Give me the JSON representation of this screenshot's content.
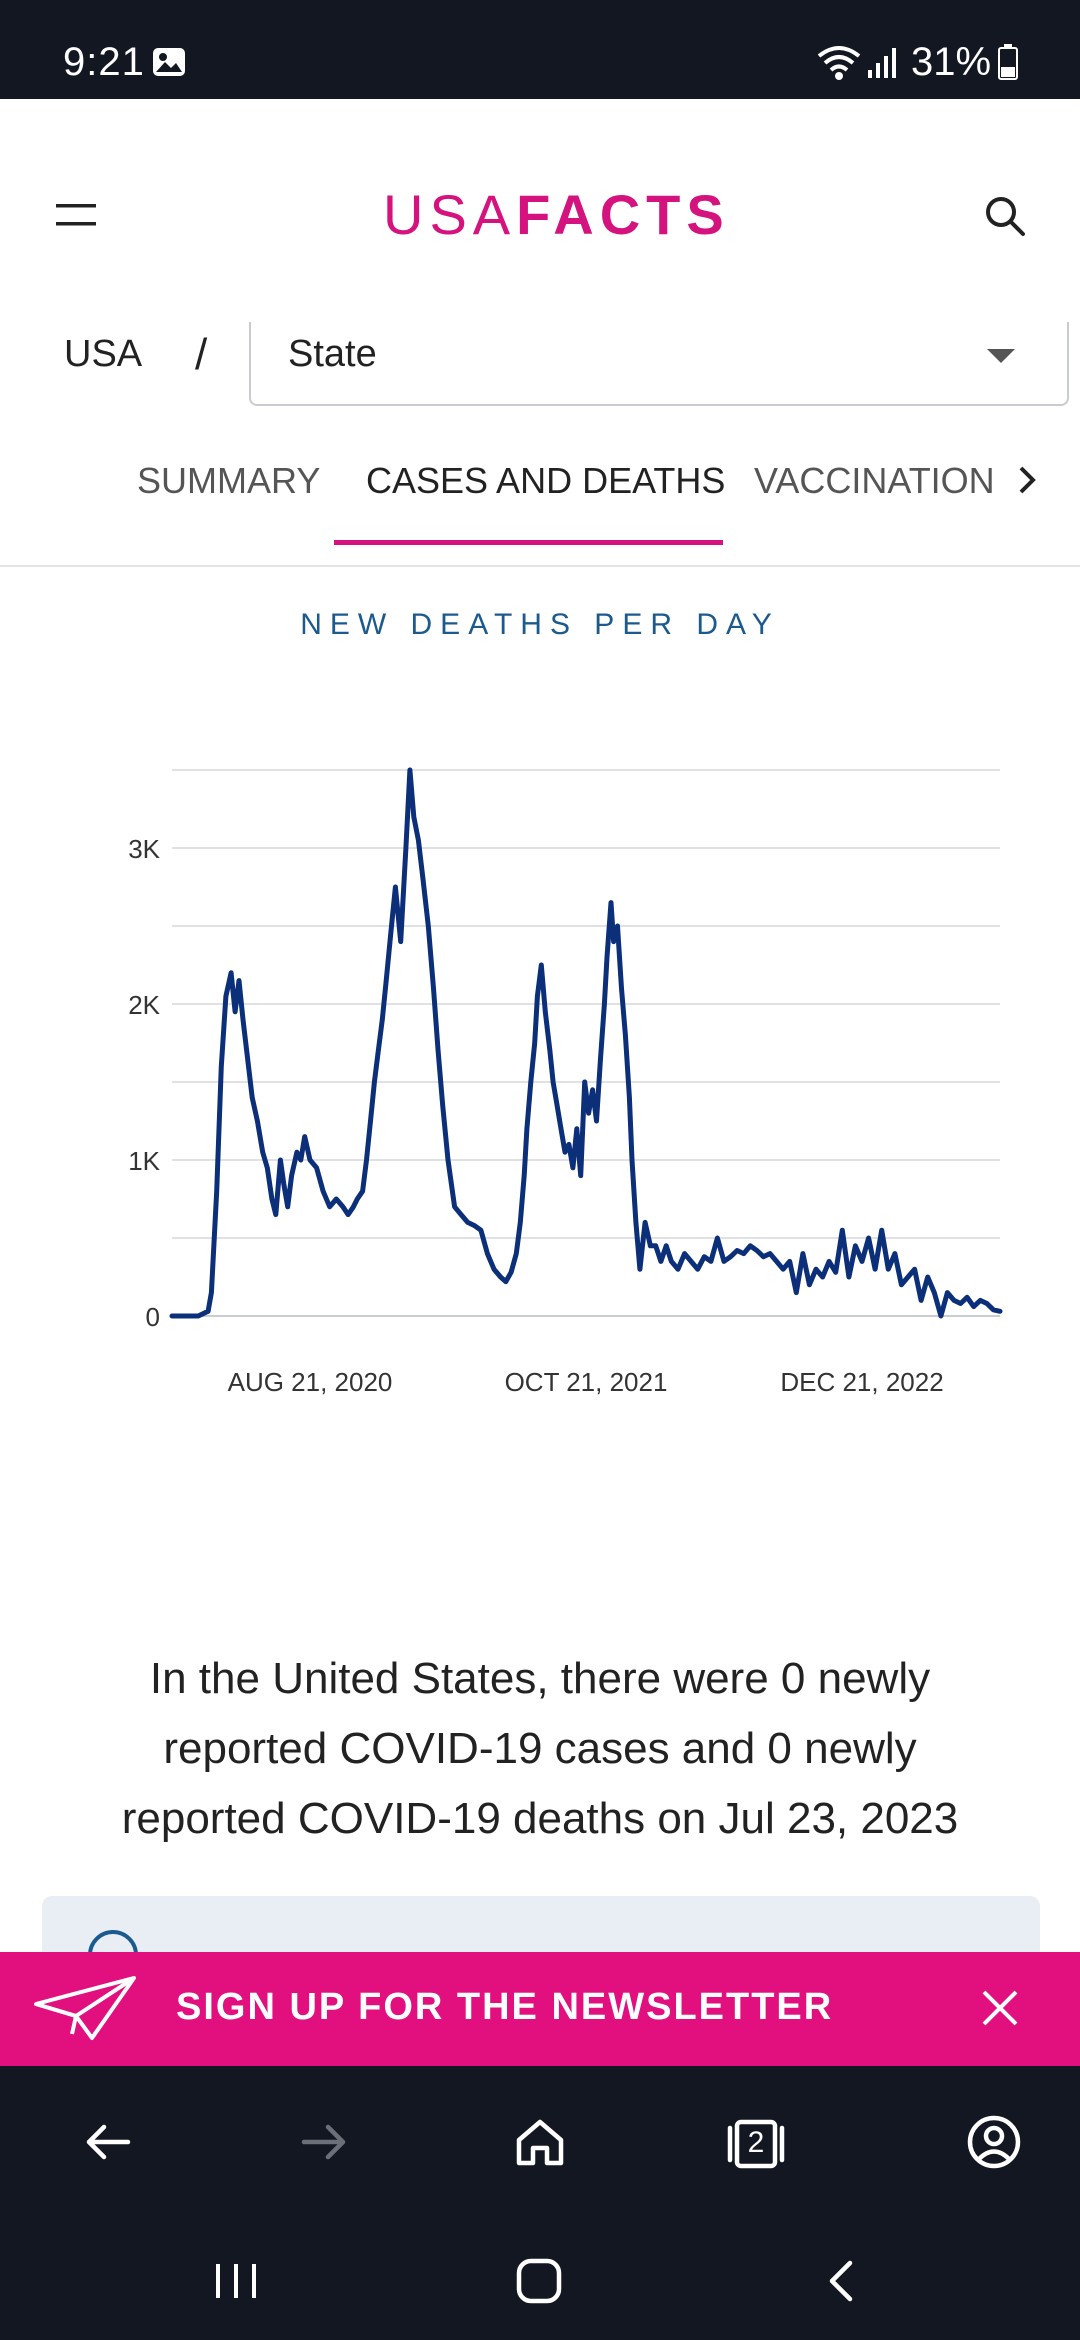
{
  "status_bar": {
    "time": "9:21",
    "battery": "31%"
  },
  "header": {
    "logo_light": "USA",
    "logo_bold": "FACTS"
  },
  "breadcrumb": {
    "country": "USA",
    "separator": "/",
    "state_select_value": "State"
  },
  "tabs": [
    {
      "label": "SUMMARY",
      "active": false
    },
    {
      "label": "CASES AND DEATHS",
      "active": true
    },
    {
      "label": "VACCINATION",
      "active": false
    }
  ],
  "chart_title": "NEW DEATHS PER DAY",
  "chart_data": {
    "type": "line",
    "title": "NEW DEATHS PER DAY",
    "xlabel": "",
    "ylabel": "",
    "ylim": [
      0,
      3500
    ],
    "yticks": [
      0,
      500,
      1000,
      1500,
      2000,
      2500,
      3000,
      3500
    ],
    "ytick_labels": [
      "0",
      "",
      "1K",
      "",
      "2K",
      "",
      "3K",
      ""
    ],
    "xlim": [
      0,
      1260
    ],
    "xticks": [
      {
        "x": 210,
        "label": "AUG 21, 2020"
      },
      {
        "x": 630,
        "label": "OCT 21, 2021"
      },
      {
        "x": 1050,
        "label": "DEC 21, 2022"
      }
    ],
    "series": [
      {
        "name": "New deaths",
        "color": "#0c2f7a",
        "x": [
          0,
          40,
          55,
          60,
          68,
          75,
          82,
          90,
          96,
          102,
          108,
          115,
          122,
          130,
          138,
          145,
          152,
          158,
          165,
          170,
          176,
          182,
          190,
          196,
          202,
          210,
          220,
          230,
          240,
          250,
          260,
          268,
          276,
          282,
          290,
          296,
          302,
          308,
          314,
          320,
          326,
          334,
          340,
          348,
          356,
          362,
          368,
          375,
          382,
          390,
          398,
          405,
          412,
          420,
          430,
          440,
          450,
          460,
          470,
          480,
          490,
          500,
          508,
          516,
          524,
          530,
          536,
          540,
          546,
          552,
          556,
          562,
          568,
          575,
          580,
          586,
          592,
          598,
          604,
          610,
          616,
          622,
          628,
          634,
          640,
          646,
          652,
          658,
          662,
          668,
          672,
          678,
          684,
          690,
          696,
          700,
          706,
          712,
          720,
          728,
          736,
          744,
          752,
          760,
          770,
          780,
          790,
          800,
          810,
          820,
          830,
          840,
          850,
          860,
          870,
          880,
          890,
          900,
          910,
          920,
          930,
          940,
          950,
          960,
          970,
          980,
          990,
          1000,
          1010,
          1020,
          1030,
          1040,
          1050,
          1060,
          1070,
          1080,
          1090,
          1100,
          1110,
          1120,
          1130,
          1140,
          1150,
          1160,
          1170,
          1180,
          1190,
          1200,
          1210,
          1220,
          1230,
          1240,
          1250,
          1260
        ],
        "values": [
          0,
          0,
          30,
          150,
          800,
          1600,
          2050,
          2200,
          1950,
          2150,
          1900,
          1650,
          1400,
          1250,
          1050,
          950,
          750,
          650,
          1000,
          850,
          700,
          900,
          1050,
          1000,
          1150,
          1000,
          950,
          800,
          700,
          750,
          700,
          650,
          700,
          750,
          800,
          1000,
          1250,
          1500,
          1700,
          1900,
          2150,
          2500,
          2750,
          2400,
          3000,
          3500,
          3200,
          3050,
          2800,
          2500,
          2100,
          1700,
          1350,
          1000,
          700,
          650,
          600,
          580,
          550,
          400,
          300,
          250,
          220,
          280,
          400,
          600,
          900,
          1200,
          1500,
          1750,
          2050,
          2250,
          1950,
          1700,
          1500,
          1350,
          1200,
          1050,
          1100,
          950,
          1200,
          900,
          1500,
          1300,
          1450,
          1250,
          1650,
          2000,
          2300,
          2650,
          2400,
          2500,
          2100,
          1800,
          1400,
          1000,
          600,
          300,
          600,
          450,
          450,
          350,
          450,
          350,
          300,
          400,
          350,
          300,
          380,
          350,
          500,
          350,
          380,
          420,
          400,
          450,
          420,
          380,
          400,
          350,
          300,
          350,
          150,
          400,
          200,
          300,
          250,
          350,
          280,
          550,
          250,
          450,
          350,
          500,
          300,
          550,
          300,
          400,
          200,
          250,
          300,
          100,
          250,
          150,
          0,
          150,
          100,
          80,
          120,
          60,
          100,
          80,
          40,
          30
        ]
      }
    ]
  },
  "summary_text": "In the United States, there were 0 newly reported COVID-19 cases and 0 newly reported COVID-19 deaths on Jul 23, 2023",
  "newsletter": {
    "label": "SIGN UP FOR THE NEWSLETTER"
  },
  "browser_bar": {
    "tab_count": "2"
  },
  "colors": {
    "brand": "#d4137e",
    "banner": "#e2107f",
    "line": "#0c2f7a",
    "title": "#1c5a8e",
    "dark_bar": "#131722"
  }
}
